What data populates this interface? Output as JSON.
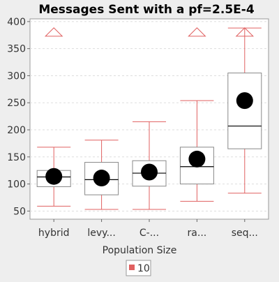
{
  "chart_data": {
    "type": "box",
    "title": "Messages Sent  with a pf=2.5E-4",
    "xlabel": "Population Size",
    "ylabel": "",
    "ylim": [
      35,
      405
    ],
    "yticks": [
      50,
      100,
      150,
      200,
      250,
      300,
      350,
      400
    ],
    "grid": true,
    "legend": {
      "placement": "bottom-center",
      "entries": [
        "10"
      ]
    },
    "colors": {
      "whisker": "#e06060",
      "box": "#888888",
      "median": "#000000",
      "mean": "#000000",
      "legend_swatch": "#e06060",
      "plot_bg": "#ffffff",
      "page_bg": "#eeeeee",
      "grid": "#dddddd"
    },
    "categories": [
      "hybrid",
      "levy...",
      "C-...",
      "ra...",
      "seq..."
    ],
    "series": [
      {
        "name": "10",
        "boxes": [
          {
            "category": "hybrid",
            "min": 59,
            "q1": 95,
            "median": 113,
            "q3": 125,
            "max": 168,
            "mean": 114,
            "outliers_above": [
              380
            ]
          },
          {
            "category": "levy...",
            "min": 53,
            "q1": 80,
            "median": 108,
            "q3": 140,
            "max": 181,
            "mean": 111,
            "outliers_above": []
          },
          {
            "category": "C-...",
            "min": 53,
            "q1": 96,
            "median": 120,
            "q3": 143,
            "max": 215,
            "mean": 122,
            "outliers_above": []
          },
          {
            "category": "ra...",
            "min": 68,
            "q1": 100,
            "median": 132,
            "q3": 168,
            "max": 254,
            "mean": 146,
            "outliers_above": [
              380
            ]
          },
          {
            "category": "seq...",
            "min": 83,
            "q1": 165,
            "median": 207,
            "q3": 305,
            "max": 388,
            "mean": 254,
            "outliers_above": [
              380
            ]
          }
        ]
      }
    ]
  }
}
